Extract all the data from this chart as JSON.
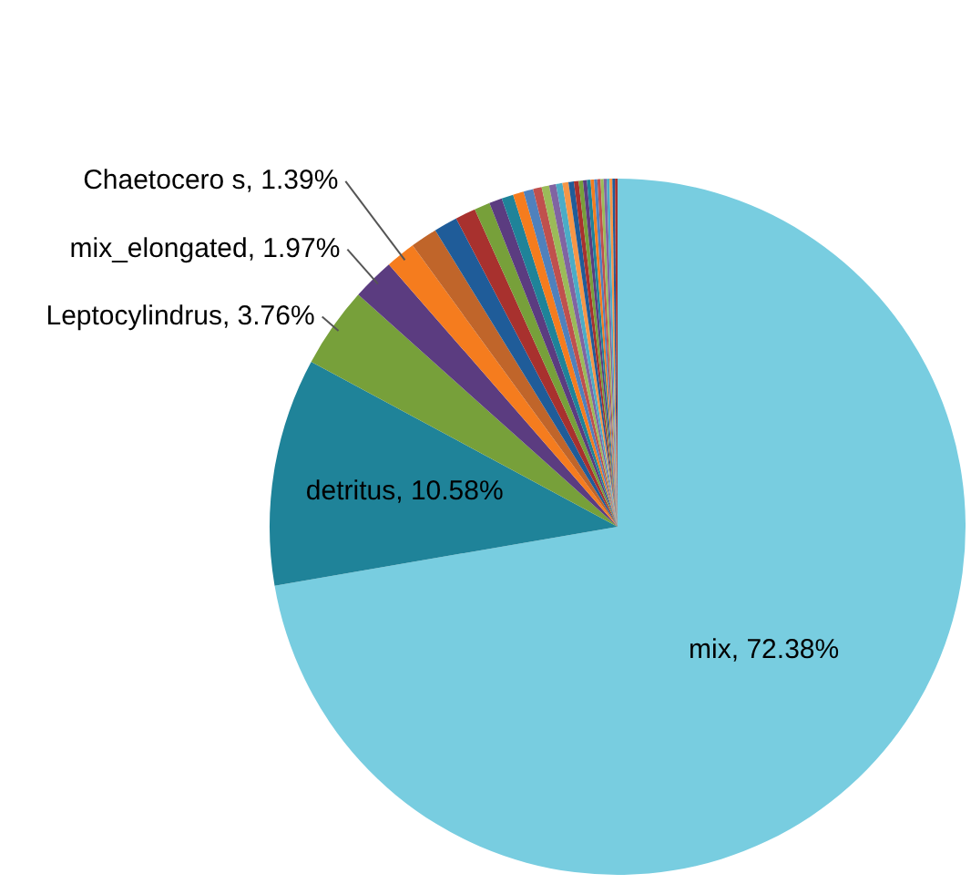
{
  "chart_data": {
    "type": "pie",
    "categories": [
      "mix",
      "detritus",
      "Leptocylindrus",
      "mix_elongated",
      "Chaetocero s",
      null,
      null,
      null,
      null,
      null,
      null,
      null,
      null,
      null,
      null,
      null,
      null,
      null,
      null,
      null,
      null,
      null,
      null,
      null,
      null,
      null,
      null,
      null,
      null,
      null,
      null,
      null
    ],
    "values": [
      72.38,
      10.58,
      3.76,
      1.97,
      1.39,
      1.25,
      1.1,
      0.95,
      0.73,
      0.6,
      0.55,
      0.5,
      0.45,
      0.4,
      0.35,
      0.32,
      0.3,
      0.28,
      0.25,
      0.22,
      0.2,
      0.18,
      0.17,
      0.16,
      0.15,
      0.15,
      0.14,
      0.14,
      0.13,
      0.13,
      0.12,
      0.12
    ],
    "value_labels": [
      "72.38%",
      "10.58%",
      "3.76%",
      "1.97%",
      "1.39%",
      null,
      null,
      null,
      null,
      null,
      null,
      null,
      null,
      null,
      null,
      null,
      null,
      null,
      null,
      null,
      null,
      null,
      null,
      null,
      null,
      null,
      null,
      null,
      null,
      null,
      null,
      null
    ],
    "colors": [
      "#78cde0",
      "#1f8399",
      "#77a03a",
      "#5b3c80",
      "#f57c1e",
      "#c0652a",
      "#1f5c99",
      "#a8312e",
      "#77a03a",
      "#5b3c80",
      "#1f8399",
      "#f57c1e",
      "#4f81bd",
      "#c0504d",
      "#9bbb59",
      "#8064a2",
      "#4bacc6",
      "#f79646",
      "#1f5c99",
      "#a8312e",
      "#77a03a",
      "#5b3c80",
      "#1f8399",
      "#f57c1e",
      "#4f81bd",
      "#c0504d",
      "#9bbb59",
      "#8064a2",
      "#4bacc6",
      "#f79646",
      "#1f5c99",
      "#a8312e"
    ],
    "legend": false
  }
}
